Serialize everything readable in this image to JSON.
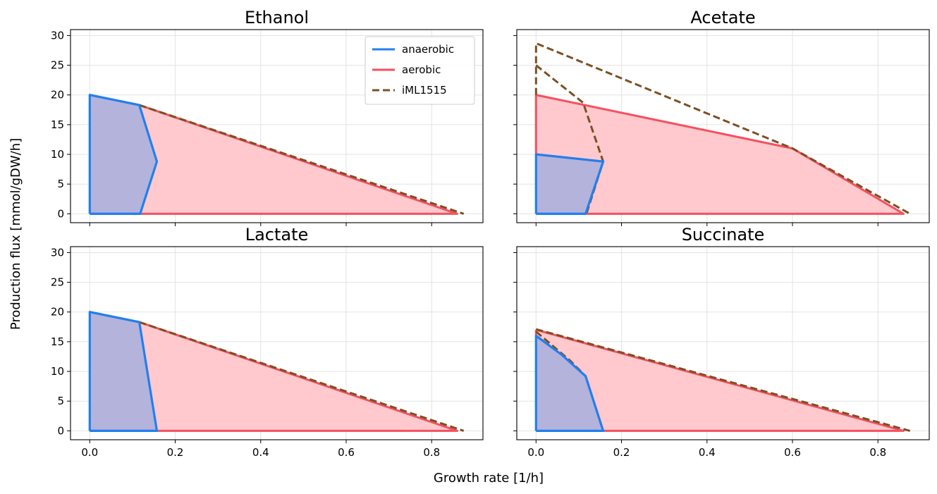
{
  "figure": {
    "ylabel": "Production flux [mmol/gDW/h]",
    "xlabel": "Growth rate [1/h]"
  },
  "legend": {
    "location": "upper-right of first panel",
    "entries": [
      {
        "label": "anaerobic",
        "color": "#1f80ef",
        "style": "solid"
      },
      {
        "label": "aerobic",
        "color": "#f5505f",
        "style": "solid"
      },
      {
        "label": "iML1515",
        "color": "#7b5023",
        "style": "dashed"
      }
    ]
  },
  "colors": {
    "anaerobic_fill": "#b3b3dc",
    "aerobic_fill": "#ffc9ce",
    "grid": "#e3e3e3"
  },
  "chart_data": [
    {
      "type": "area",
      "title": "Ethanol",
      "xlim": [
        0,
        0.875
      ],
      "ylim": [
        0,
        30
      ],
      "xticks": [
        "0.0",
        "0.2",
        "0.4",
        "0.6",
        "0.8"
      ],
      "yticks": [
        "0",
        "5",
        "10",
        "15",
        "20",
        "25",
        "30"
      ],
      "grid": true,
      "series": [
        {
          "name": "aerobic",
          "x": [
            0,
            0.116,
            0.86,
            0.116,
            0
          ],
          "y": [
            20,
            18.3,
            0,
            0,
            0
          ]
        },
        {
          "name": "anaerobic",
          "x": [
            0,
            0,
            0.116,
            0.157,
            0.118,
            0
          ],
          "y": [
            0,
            20,
            18.3,
            8.8,
            0,
            0
          ]
        },
        {
          "name": "iML1515",
          "x": [
            0.116,
            0.875
          ],
          "y": [
            18.3,
            0
          ]
        }
      ]
    },
    {
      "type": "area",
      "title": "Acetate",
      "xlim": [
        0,
        0.875
      ],
      "ylim": [
        0,
        30
      ],
      "xticks": [
        "0.0",
        "0.2",
        "0.4",
        "0.6",
        "0.8"
      ],
      "yticks": [
        "0",
        "5",
        "10",
        "15",
        "20",
        "25",
        "30"
      ],
      "grid": true,
      "series": [
        {
          "name": "aerobic",
          "x": [
            0,
            0,
            0.6,
            0.86,
            0.116,
            0.157,
            0,
            0
          ],
          "y": [
            10,
            20,
            11,
            0,
            0,
            8.8,
            10,
            10
          ]
        },
        {
          "name": "anaerobic",
          "x": [
            0,
            0,
            0.157,
            0.116,
            0
          ],
          "y": [
            0,
            10,
            8.8,
            0,
            0
          ]
        },
        {
          "name": "iML1515",
          "x": [
            0,
            0,
            0.6,
            0.875
          ],
          "y": [
            20,
            28.7,
            11,
            0
          ]
        },
        {
          "name": "iML1515",
          "x": [
            0,
            0.11,
            0.157,
            0.118
          ],
          "y": [
            25,
            18.7,
            8.8,
            0
          ]
        }
      ]
    },
    {
      "type": "area",
      "title": "Lactate",
      "xlim": [
        0,
        0.875
      ],
      "ylim": [
        0,
        30
      ],
      "xticks": [
        "0.0",
        "0.2",
        "0.4",
        "0.6",
        "0.8"
      ],
      "yticks": [
        "0",
        "5",
        "10",
        "15",
        "20",
        "25",
        "30"
      ],
      "grid": true,
      "series": [
        {
          "name": "aerobic",
          "x": [
            0,
            0.116,
            0.86,
            0.157,
            0
          ],
          "y": [
            20,
            18.3,
            0,
            0,
            0
          ]
        },
        {
          "name": "anaerobic",
          "x": [
            0,
            0,
            0.116,
            0.157,
            0
          ],
          "y": [
            0,
            20,
            18.3,
            0,
            0
          ]
        },
        {
          "name": "iML1515",
          "x": [
            0.116,
            0.875
          ],
          "y": [
            18.3,
            0
          ]
        }
      ]
    },
    {
      "type": "area",
      "title": "Succinate",
      "xlim": [
        0,
        0.875
      ],
      "ylim": [
        0,
        30
      ],
      "xticks": [
        "0.0",
        "0.2",
        "0.4",
        "0.6",
        "0.8"
      ],
      "yticks": [
        "0",
        "5",
        "10",
        "15",
        "20",
        "25",
        "30"
      ],
      "grid": true,
      "series": [
        {
          "name": "aerobic",
          "x": [
            0,
            0.86,
            0.157,
            0.116,
            0.06,
            0,
            0
          ],
          "y": [
            17,
            0,
            0,
            9.2,
            12.8,
            16,
            17
          ]
        },
        {
          "name": "anaerobic",
          "x": [
            0,
            0,
            0.06,
            0.116,
            0.157,
            0
          ],
          "y": [
            0,
            16,
            12.8,
            9.2,
            0,
            0
          ]
        },
        {
          "name": "iML1515",
          "x": [
            0,
            0.875
          ],
          "y": [
            17.1,
            0
          ]
        },
        {
          "name": "iML1515",
          "x": [
            0,
            0.08,
            0.116
          ],
          "y": [
            16.7,
            11.8,
            9.2
          ]
        }
      ]
    }
  ]
}
